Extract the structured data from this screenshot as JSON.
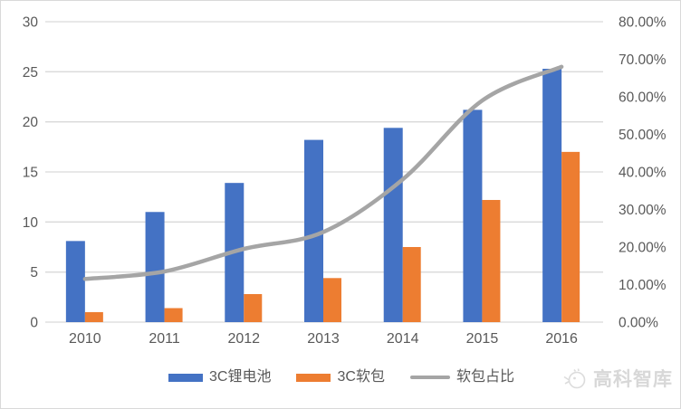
{
  "chart_data": {
    "type": "combo",
    "title": "",
    "categories": [
      "2010",
      "2011",
      "2012",
      "2013",
      "2014",
      "2015",
      "2016"
    ],
    "bar_series": [
      {
        "name": "3C锂电池",
        "color": "#4472C4",
        "axis": "left",
        "values": [
          8.1,
          11.0,
          13.9,
          18.2,
          19.4,
          21.2,
          25.3
        ]
      },
      {
        "name": "3C软包",
        "color": "#ED7D31",
        "axis": "left",
        "values": [
          1.0,
          1.4,
          2.8,
          4.4,
          7.5,
          12.2,
          17.0
        ]
      }
    ],
    "line_series": [
      {
        "name": "软包占比",
        "color": "#A5A5A5",
        "axis": "right",
        "smooth": true,
        "values_pct": [
          11.5,
          13.5,
          19.5,
          24.0,
          38.0,
          59.0,
          68.0
        ]
      }
    ],
    "left_axis": {
      "min": 0,
      "max": 30,
      "step": 5,
      "ticks": [
        "0",
        "5",
        "10",
        "15",
        "20",
        "25",
        "30"
      ]
    },
    "right_axis": {
      "min": 0,
      "max": 80,
      "step": 10,
      "ticks": [
        "0.00%",
        "10.00%",
        "20.00%",
        "30.00%",
        "40.00%",
        "50.00%",
        "60.00%",
        "70.00%",
        "80.00%"
      ]
    },
    "grid": true,
    "legend_position": "bottom"
  },
  "colors": {
    "grid": "#d9d9d9",
    "axis_text": "#595959",
    "watermark": "#d8d8d8",
    "background": "#ffffff"
  },
  "watermark": {
    "text": "高科智库"
  }
}
